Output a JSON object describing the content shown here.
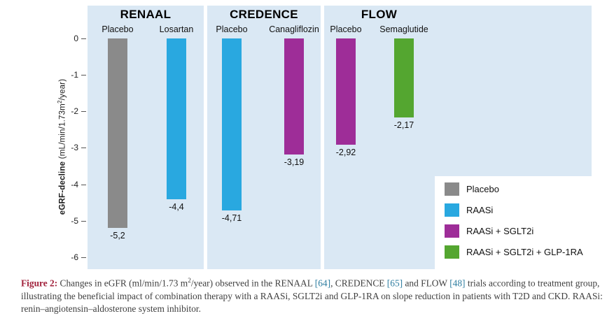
{
  "chart_data": {
    "type": "bar",
    "title": "",
    "ylabel": "eGRF-decline (mL/min/1.73m2/year)",
    "ylabel_parts": {
      "bold": "eGRF-decline",
      "unit_pre": " (mL/min/1.73m",
      "unit_sup": "2",
      "unit_post": "/year)"
    },
    "ylim": [
      -6,
      0
    ],
    "yticks": [
      "0",
      "-1",
      "-2",
      "-3",
      "-4",
      "-5",
      "-6"
    ],
    "grid": false,
    "legend_position": "right-bottom",
    "groups": [
      {
        "trial": "RENAAL",
        "bars": [
          {
            "label": "Placebo",
            "value": -5.2,
            "value_label": "-5,2",
            "series": "Placebo",
            "color": "#8a8a8a"
          },
          {
            "label": "Losartan",
            "value": -4.4,
            "value_label": "-4,4",
            "series": "RAASi",
            "color": "#29a8e0"
          }
        ]
      },
      {
        "trial": "CREDENCE",
        "bars": [
          {
            "label": "Placebo",
            "value": -4.71,
            "value_label": "-4,71",
            "series": "RAASi",
            "color": "#29a8e0"
          },
          {
            "label": "Canagliflozin",
            "value": -3.19,
            "value_label": "-3,19",
            "series": "RAASi + SGLT2i",
            "color": "#9e2d98"
          }
        ]
      },
      {
        "trial": "FLOW",
        "bars": [
          {
            "label": "Placebo",
            "value": -2.92,
            "value_label": "-2,92",
            "series": "RAASi + SGLT2i",
            "color": "#9e2d98"
          },
          {
            "label": "Semaglutide",
            "value": -2.17,
            "value_label": "-2,17",
            "series": "RAASi + SGLT2i + GLP-1RA",
            "color": "#54a630"
          }
        ]
      }
    ],
    "legend": [
      {
        "label": "Placebo",
        "color": "#8a8a8a"
      },
      {
        "label": "RAASi",
        "color": "#29a8e0"
      },
      {
        "label": "RAASi + SGLT2i",
        "color": "#9e2d98"
      },
      {
        "label": "RAASi + SGLT2i + GLP-1RA",
        "color": "#54a630"
      }
    ]
  },
  "caption": {
    "label": "Figure 2:",
    "part1": " Changes in eGFR (ml/min/1.73 m",
    "sup1": "2",
    "part2": "/year) observed in the RENAAL ",
    "ref1": "[64]",
    "part3": ", CREDENCE ",
    "ref2": "[65]",
    "part4": " and FLOW ",
    "ref3": "[48]",
    "part5": " trials according to treatment group, illustrating the beneficial impact of combination therapy with a RAASi, SGLT2i and GLP-1RA on slope reduction in patients with T2D and CKD. RAASi: renin–angiotensin–aldosterone system inhibitor."
  }
}
